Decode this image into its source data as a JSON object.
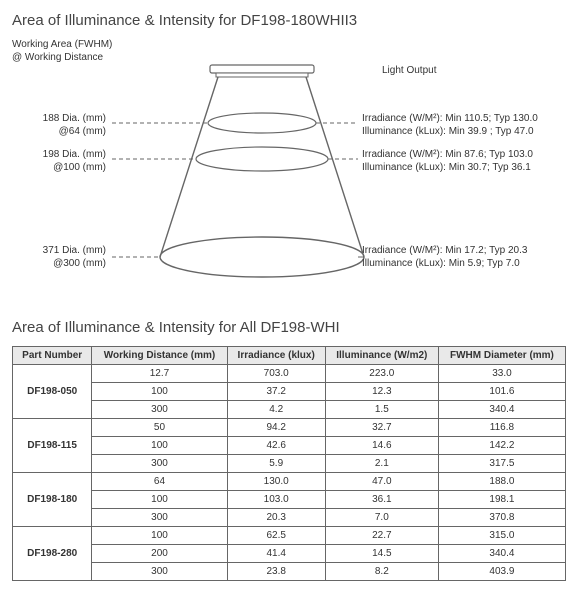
{
  "title_top": "Area of Illuminance & Intensity for DF198-180WHII3",
  "title_bottom": "Area of Illuminance & Intensity for All DF198-WHI",
  "diagram": {
    "working_area_header": "Working Area (FWHM)\n@ Working Distance",
    "light_output": "Light Output",
    "levels": [
      {
        "left_dia": "188 Dia. (mm)",
        "left_at": "@64 (mm)",
        "right_line1": "Irradiance (W/M²):  Min 110.5; Typ 130.0",
        "right_line2": "Illuminance  (kLux):    Min 39.9 ; Typ 47.0"
      },
      {
        "left_dia": "198 Dia. (mm)",
        "left_at": "@100 (mm)",
        "right_line1": "Irradiance (W/M²): Min 87.6; Typ 103.0",
        "right_line2": "Illuminance (kLux):  Min 30.7; Typ 36.1"
      },
      {
        "left_dia": "371 Dia. (mm)",
        "left_at": "@300 (mm)",
        "right_line1": "Irradiance (W/M²): Min 17.2; Typ 20.3",
        "right_line2": "Illuminance  (kLux):   Min 5.9; Typ 7.0"
      }
    ],
    "stroke": "#666666",
    "fill": "#ffffff"
  },
  "table": {
    "columns": [
      "Part Number",
      "Working Distance (mm)",
      "Irradiance (klux)",
      "Illuminance (W/m2)",
      "FWHM Diameter (mm)"
    ],
    "groups": [
      {
        "pn": "DF198-050",
        "rows": [
          [
            "12.7",
            "703.0",
            "223.0",
            "33.0"
          ],
          [
            "100",
            "37.2",
            "12.3",
            "101.6"
          ],
          [
            "300",
            "4.2",
            "1.5",
            "340.4"
          ]
        ]
      },
      {
        "pn": "DF198-115",
        "rows": [
          [
            "50",
            "94.2",
            "32.7",
            "116.8"
          ],
          [
            "100",
            "42.6",
            "14.6",
            "142.2"
          ],
          [
            "300",
            "5.9",
            "2.1",
            "317.5"
          ]
        ]
      },
      {
        "pn": "DF198-180",
        "rows": [
          [
            "64",
            "130.0",
            "47.0",
            "188.0"
          ],
          [
            "100",
            "103.0",
            "36.1",
            "198.1"
          ],
          [
            "300",
            "20.3",
            "7.0",
            "370.8"
          ]
        ]
      },
      {
        "pn": "DF198-280",
        "rows": [
          [
            "100",
            "62.5",
            "22.7",
            "315.0"
          ],
          [
            "200",
            "41.4",
            "14.5",
            "340.4"
          ],
          [
            "300",
            "23.8",
            "8.2",
            "403.9"
          ]
        ]
      }
    ]
  }
}
